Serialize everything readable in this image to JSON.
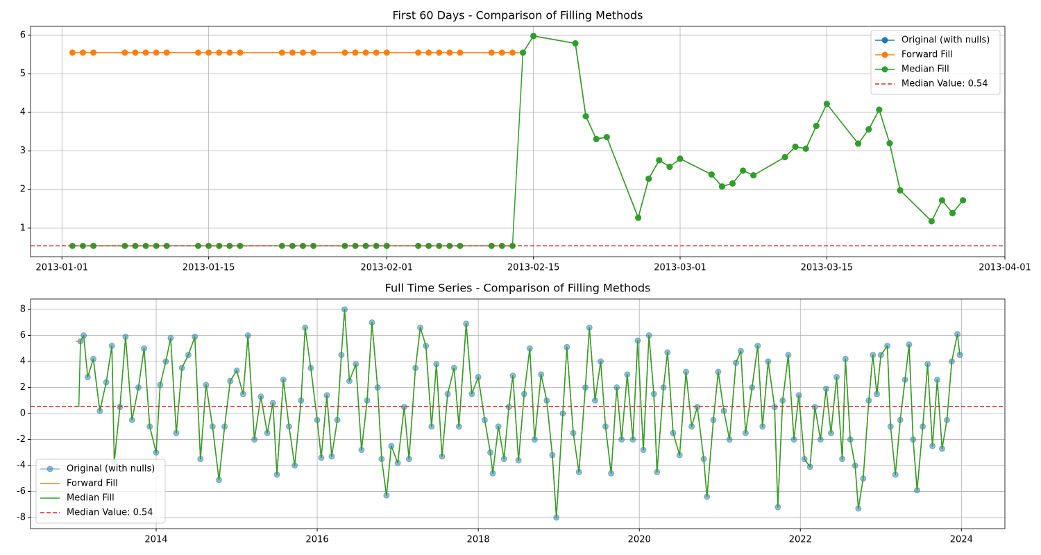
{
  "chart_data": [
    {
      "type": "line",
      "title": "First 60 Days - Comparison of Filling Methods",
      "x": [
        "2013-01-02",
        "2013-01-03",
        "2013-01-04",
        "2013-01-07",
        "2013-01-08",
        "2013-01-09",
        "2013-01-10",
        "2013-01-11",
        "2013-01-14",
        "2013-01-15",
        "2013-01-16",
        "2013-01-17",
        "2013-01-18",
        "2013-01-22",
        "2013-01-23",
        "2013-01-24",
        "2013-01-25",
        "2013-01-28",
        "2013-01-29",
        "2013-01-30",
        "2013-01-31",
        "2013-02-01",
        "2013-02-04",
        "2013-02-05",
        "2013-02-06",
        "2013-02-07",
        "2013-02-08",
        "2013-02-11",
        "2013-02-12",
        "2013-02-13",
        "2013-02-14",
        "2013-02-15",
        "2013-02-19",
        "2013-02-20",
        "2013-02-21",
        "2013-02-22",
        "2013-02-25",
        "2013-02-26",
        "2013-02-27",
        "2013-02-28",
        "2013-03-01",
        "2013-03-04",
        "2013-03-05",
        "2013-03-06",
        "2013-03-07",
        "2013-03-08",
        "2013-03-11",
        "2013-03-12",
        "2013-03-13",
        "2013-03-14",
        "2013-03-15",
        "2013-03-18",
        "2013-03-19",
        "2013-03-20",
        "2013-03-21",
        "2013-03-22",
        "2013-03-25",
        "2013-03-26",
        "2013-03-27",
        "2013-03-28"
      ],
      "series": [
        {
          "name": "Original (with nulls)",
          "color": "#1f77b4",
          "markers": true,
          "alpha": 1,
          "values": [
            null,
            null,
            null,
            null,
            null,
            null,
            null,
            null,
            null,
            null,
            null,
            null,
            null,
            null,
            null,
            null,
            null,
            null,
            null,
            null,
            null,
            null,
            null,
            null,
            null,
            null,
            null,
            null,
            null,
            null,
            5.55,
            5.98,
            5.79,
            3.9,
            3.31,
            3.36,
            1.27,
            2.28,
            2.76,
            2.59,
            2.8,
            2.39,
            2.08,
            2.16,
            2.49,
            2.37,
            2.84,
            3.11,
            3.06,
            3.65,
            4.22,
            3.19,
            3.56,
            4.07,
            3.2,
            1.98,
            1.18,
            1.72,
            1.39,
            1.72
          ]
        },
        {
          "name": "Forward Fill",
          "color": "#ff7f0e",
          "markers": true,
          "alpha": 1,
          "values": [
            5.55,
            5.55,
            5.55,
            5.55,
            5.55,
            5.55,
            5.55,
            5.55,
            5.55,
            5.55,
            5.55,
            5.55,
            5.55,
            5.55,
            5.55,
            5.55,
            5.55,
            5.55,
            5.55,
            5.55,
            5.55,
            5.55,
            5.55,
            5.55,
            5.55,
            5.55,
            5.55,
            5.55,
            5.55,
            5.55,
            5.55,
            5.98,
            5.79,
            3.9,
            3.31,
            3.36,
            1.27,
            2.28,
            2.76,
            2.59,
            2.8,
            2.39,
            2.08,
            2.16,
            2.49,
            2.37,
            2.84,
            3.11,
            3.06,
            3.65,
            4.22,
            3.19,
            3.56,
            4.07,
            3.2,
            1.98,
            1.18,
            1.72,
            1.39,
            1.72
          ]
        },
        {
          "name": "Median Fill",
          "color": "#2ca02c",
          "markers": true,
          "alpha": 1,
          "values": [
            0.54,
            0.54,
            0.54,
            0.54,
            0.54,
            0.54,
            0.54,
            0.54,
            0.54,
            0.54,
            0.54,
            0.54,
            0.54,
            0.54,
            0.54,
            0.54,
            0.54,
            0.54,
            0.54,
            0.54,
            0.54,
            0.54,
            0.54,
            0.54,
            0.54,
            0.54,
            0.54,
            0.54,
            0.54,
            0.54,
            5.55,
            5.98,
            5.79,
            3.9,
            3.31,
            3.36,
            1.27,
            2.28,
            2.76,
            2.59,
            2.8,
            2.39,
            2.08,
            2.16,
            2.49,
            2.37,
            2.84,
            3.11,
            3.06,
            3.65,
            4.22,
            3.19,
            3.56,
            4.07,
            3.2,
            1.98,
            1.18,
            1.72,
            1.39,
            1.72
          ]
        }
      ],
      "reference_line": {
        "name": "Median Value: 0.54",
        "value": 0.54,
        "color": "#d62728"
      },
      "xlim": [
        "2012-12-29",
        "2013-04-01"
      ],
      "xticks": [
        "2013-01-01",
        "2013-01-15",
        "2013-02-01",
        "2013-02-15",
        "2013-03-01",
        "2013-03-15",
        "2013-04-01"
      ],
      "ylim": [
        0.26,
        6.23
      ],
      "yticks": [
        1,
        2,
        3,
        4,
        5,
        6
      ],
      "grid": true,
      "legend": "upper right"
    },
    {
      "type": "line",
      "title": "Full Time Series - Comparison of Filling Methods",
      "x": [
        2013.0,
        2013.02,
        2013.04,
        2013.06,
        2013.1,
        2013.15,
        2013.22,
        2013.3,
        2013.38,
        2013.45,
        2013.48,
        2013.55,
        2013.62,
        2013.7,
        2013.78,
        2013.85,
        2013.92,
        2014.0,
        2014.05,
        2014.12,
        2014.18,
        2014.25,
        2014.32,
        2014.4,
        2014.48,
        2014.55,
        2014.62,
        2014.7,
        2014.78,
        2014.85,
        2014.92,
        2015.0,
        2015.08,
        2015.14,
        2015.22,
        2015.3,
        2015.38,
        2015.45,
        2015.5,
        2015.58,
        2015.65,
        2015.72,
        2015.8,
        2015.85,
        2015.92,
        2016.0,
        2016.05,
        2016.12,
        2016.18,
        2016.25,
        2016.3,
        2016.34,
        2016.4,
        2016.48,
        2016.55,
        2016.62,
        2016.68,
        2016.75,
        2016.8,
        2016.86,
        2016.92,
        2017.0,
        2017.08,
        2017.14,
        2017.22,
        2017.28,
        2017.35,
        2017.42,
        2017.48,
        2017.55,
        2017.62,
        2017.7,
        2017.76,
        2017.85,
        2017.92,
        2018.0,
        2018.08,
        2018.15,
        2018.18,
        2018.25,
        2018.32,
        2018.38,
        2018.43,
        2018.5,
        2018.57,
        2018.64,
        2018.7,
        2018.78,
        2018.85,
        2018.92,
        2018.97,
        2019.05,
        2019.1,
        2019.18,
        2019.25,
        2019.33,
        2019.38,
        2019.45,
        2019.52,
        2019.58,
        2019.65,
        2019.72,
        2019.78,
        2019.85,
        2019.92,
        2019.98,
        2020.05,
        2020.12,
        2020.18,
        2020.22,
        2020.3,
        2020.35,
        2020.42,
        2020.5,
        2020.58,
        2020.65,
        2020.72,
        2020.8,
        2020.84,
        2020.92,
        2020.98,
        2021.05,
        2021.12,
        2021.2,
        2021.26,
        2021.32,
        2021.4,
        2021.47,
        2021.53,
        2021.6,
        2021.68,
        2021.72,
        2021.78,
        2021.85,
        2021.92,
        2021.98,
        2022.05,
        2022.12,
        2022.18,
        2022.25,
        2022.32,
        2022.38,
        2022.45,
        2022.52,
        2022.56,
        2022.62,
        2022.68,
        2022.72,
        2022.78,
        2022.85,
        2022.9,
        2022.95,
        2023.0,
        2023.08,
        2023.12,
        2023.18,
        2023.24,
        2023.3,
        2023.35,
        2023.4,
        2023.45,
        2023.52,
        2023.58,
        2023.64,
        2023.7,
        2023.76,
        2023.82,
        2023.88,
        2023.95,
        2023.98
      ],
      "series": [
        {
          "name": "Original (with nulls)",
          "color": "#1f77b4",
          "markers": true,
          "alpha": 0.5,
          "values": [
            null,
            null,
            null,
            5.55,
            6.0,
            2.8,
            4.2,
            0.2,
            2.4,
            5.2,
            -3.7,
            0.5,
            5.9,
            -0.5,
            2.0,
            5.0,
            -1.0,
            -3.0,
            2.2,
            4.0,
            5.8,
            -1.5,
            3.5,
            4.5,
            5.9,
            -3.5,
            2.2,
            -1.0,
            -5.1,
            -1.0,
            2.5,
            3.3,
            1.5,
            6.0,
            -2.0,
            1.3,
            -1.5,
            0.8,
            -4.7,
            2.6,
            -1.0,
            -4.0,
            1.0,
            6.6,
            3.5,
            -0.5,
            -3.4,
            1.4,
            -3.3,
            -0.5,
            4.5,
            8.0,
            2.5,
            3.8,
            -2.8,
            1.0,
            7.0,
            2.0,
            -3.5,
            -6.3,
            -2.5,
            -3.8,
            0.5,
            -3.5,
            3.5,
            6.6,
            5.2,
            -1.0,
            3.8,
            -3.3,
            1.5,
            3.5,
            -1.0,
            6.9,
            1.5,
            2.8,
            -0.5,
            -3.0,
            -4.6,
            -1.0,
            -3.5,
            0.5,
            2.9,
            -3.6,
            1.5,
            5.0,
            -2.0,
            3.0,
            1.0,
            -3.2,
            -8.0,
            0.0,
            5.1,
            -1.5,
            -4.5,
            2.0,
            6.6,
            1.0,
            4.0,
            -1.0,
            -4.6,
            2.0,
            -2.0,
            3.0,
            -2.0,
            5.6,
            -2.8,
            6.0,
            1.5,
            -4.5,
            2.0,
            4.7,
            -1.5,
            -3.2,
            3.2,
            -1.0,
            0.5,
            -3.5,
            -6.4,
            -0.5,
            3.2,
            0.2,
            -2.0,
            3.9,
            4.8,
            -1.5,
            2.0,
            5.2,
            -1.0,
            4.0,
            0.5,
            -7.2,
            1.0,
            4.5,
            -2.0,
            1.4,
            -3.5,
            -4.1,
            0.5,
            -2.0,
            1.9,
            -1.5,
            2.8,
            -3.5,
            4.2,
            -2.0,
            -4.0,
            -7.3,
            -5.0,
            1.0,
            4.5,
            1.5,
            4.5,
            5.2,
            -1.0,
            -4.7,
            -0.5,
            2.6,
            5.3,
            -2.0,
            -5.9,
            -1.0,
            3.8,
            -2.5,
            2.6,
            -2.7,
            -0.5,
            4.0,
            6.1,
            4.5
          ]
        },
        {
          "name": "Forward Fill",
          "color": "#ff7f0e",
          "markers": false,
          "alpha": 1,
          "values": [
            5.55,
            5.55,
            5.55,
            5.55,
            6.0,
            2.8,
            4.2,
            0.2,
            2.4,
            5.2,
            -3.7,
            0.5,
            5.9,
            -0.5,
            2.0,
            5.0,
            -1.0,
            -3.0,
            2.2,
            4.0,
            5.8,
            -1.5,
            3.5,
            4.5,
            5.9,
            -3.5,
            2.2,
            -1.0,
            -5.1,
            -1.0,
            2.5,
            3.3,
            1.5,
            6.0,
            -2.0,
            1.3,
            -1.5,
            0.8,
            -4.7,
            2.6,
            -1.0,
            -4.0,
            1.0,
            6.6,
            3.5,
            -0.5,
            -3.4,
            1.4,
            -3.3,
            -0.5,
            4.5,
            8.0,
            2.5,
            3.8,
            -2.8,
            1.0,
            7.0,
            2.0,
            -3.5,
            -6.3,
            -2.5,
            -3.8,
            0.5,
            -3.5,
            3.5,
            6.6,
            5.2,
            -1.0,
            3.8,
            -3.3,
            1.5,
            3.5,
            -1.0,
            6.9,
            1.5,
            2.8,
            -0.5,
            -3.0,
            -4.6,
            -1.0,
            -3.5,
            0.5,
            2.9,
            -3.6,
            1.5,
            5.0,
            -2.0,
            3.0,
            1.0,
            -3.2,
            -8.0,
            0.0,
            5.1,
            -1.5,
            -4.5,
            2.0,
            6.6,
            1.0,
            4.0,
            -1.0,
            -4.6,
            2.0,
            -2.0,
            3.0,
            -2.0,
            5.6,
            -2.8,
            6.0,
            1.5,
            -4.5,
            2.0,
            4.7,
            -1.5,
            -3.2,
            3.2,
            -1.0,
            0.5,
            -3.5,
            -6.4,
            -0.5,
            3.2,
            0.2,
            -2.0,
            3.9,
            4.8,
            -1.5,
            2.0,
            5.2,
            -1.0,
            4.0,
            0.5,
            -7.2,
            1.0,
            4.5,
            -2.0,
            1.4,
            -3.5,
            -4.1,
            0.5,
            -2.0,
            1.9,
            -1.5,
            2.8,
            -3.5,
            4.2,
            -2.0,
            -4.0,
            -7.3,
            -5.0,
            1.0,
            4.5,
            1.5,
            4.5,
            5.2,
            -1.0,
            -4.7,
            -0.5,
            2.6,
            5.3,
            -2.0,
            -5.9,
            -1.0,
            3.8,
            -2.5,
            2.6,
            -2.7,
            -0.5,
            4.0,
            6.1,
            4.5
          ]
        },
        {
          "name": "Median Fill",
          "color": "#2ca02c",
          "markers": false,
          "alpha": 1,
          "values": [
            0.54,
            0.54,
            0.54,
            5.55,
            6.0,
            2.8,
            4.2,
            0.2,
            2.4,
            5.2,
            -3.7,
            0.5,
            5.9,
            -0.5,
            2.0,
            5.0,
            -1.0,
            -3.0,
            2.2,
            4.0,
            5.8,
            -1.5,
            3.5,
            4.5,
            5.9,
            -3.5,
            2.2,
            -1.0,
            -5.1,
            -1.0,
            2.5,
            3.3,
            1.5,
            6.0,
            -2.0,
            1.3,
            -1.5,
            0.8,
            -4.7,
            2.6,
            -1.0,
            -4.0,
            1.0,
            6.6,
            3.5,
            -0.5,
            -3.4,
            1.4,
            -3.3,
            -0.5,
            4.5,
            8.0,
            2.5,
            3.8,
            -2.8,
            1.0,
            7.0,
            2.0,
            -3.5,
            -6.3,
            -2.5,
            -3.8,
            0.5,
            -3.5,
            3.5,
            6.6,
            5.2,
            -1.0,
            3.8,
            -3.3,
            1.5,
            3.5,
            -1.0,
            6.9,
            1.5,
            2.8,
            -0.5,
            -3.0,
            -4.6,
            -1.0,
            -3.5,
            0.5,
            2.9,
            -3.6,
            1.5,
            5.0,
            -2.0,
            3.0,
            1.0,
            -3.2,
            -8.0,
            0.0,
            5.1,
            -1.5,
            -4.5,
            2.0,
            6.6,
            1.0,
            4.0,
            -1.0,
            -4.6,
            2.0,
            -2.0,
            3.0,
            -2.0,
            5.6,
            -2.8,
            6.0,
            1.5,
            -4.5,
            2.0,
            4.7,
            -1.5,
            -3.2,
            3.2,
            -1.0,
            0.5,
            -3.5,
            -6.4,
            -0.5,
            3.2,
            0.2,
            -2.0,
            3.9,
            4.8,
            -1.5,
            2.0,
            5.2,
            -1.0,
            4.0,
            0.5,
            -7.2,
            1.0,
            4.5,
            -2.0,
            1.4,
            -3.5,
            -4.1,
            0.5,
            -2.0,
            1.9,
            -1.5,
            2.8,
            -3.5,
            4.2,
            -2.0,
            -4.0,
            -7.3,
            -5.0,
            1.0,
            4.5,
            1.5,
            4.5,
            5.2,
            -1.0,
            -4.7,
            -0.5,
            2.6,
            5.3,
            -2.0,
            -5.9,
            -1.0,
            3.8,
            -2.5,
            2.6,
            -2.7,
            -0.5,
            4.0,
            6.1,
            4.5
          ]
        }
      ],
      "reference_line": {
        "name": "Median Value: 0.54",
        "value": 0.54,
        "color": "#d62728"
      },
      "xlim": [
        2012.44,
        2024.54
      ],
      "xticks": [
        2014,
        2016,
        2018,
        2020,
        2022,
        2024
      ],
      "ylim": [
        -8.85,
        8.8
      ],
      "yticks": [
        -8,
        -6,
        -4,
        -2,
        0,
        2,
        4,
        6,
        8
      ],
      "grid": true,
      "legend": "lower left"
    }
  ]
}
